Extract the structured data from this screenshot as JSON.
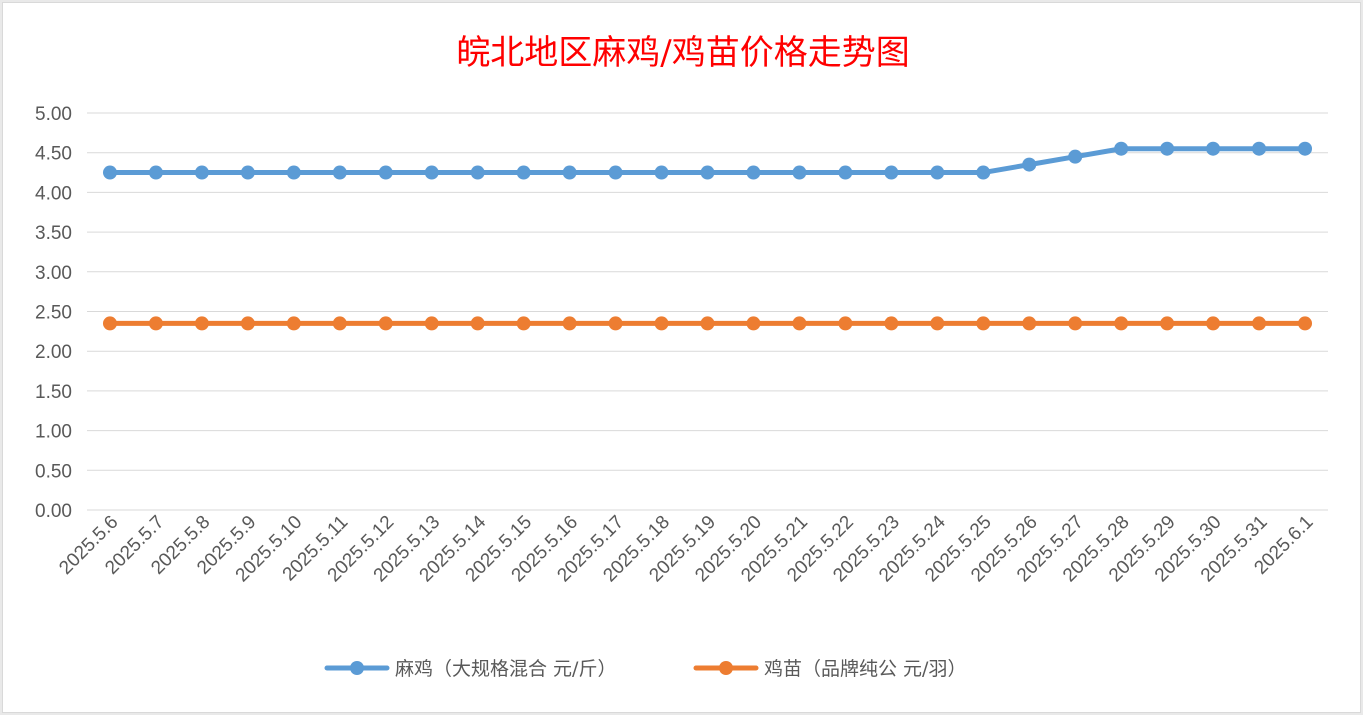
{
  "chart_data": {
    "type": "line",
    "title": "皖北地区麻鸡/鸡苗价格走势图",
    "title_color": "#ff0000",
    "categories": [
      "2025.5.6",
      "2025.5.7",
      "2025.5.8",
      "2025.5.9",
      "2025.5.10",
      "2025.5.11",
      "2025.5.12",
      "2025.5.13",
      "2025.5.14",
      "2025.5.15",
      "2025.5.16",
      "2025.5.17",
      "2025.5.18",
      "2025.5.19",
      "2025.5.20",
      "2025.5.21",
      "2025.5.22",
      "2025.5.23",
      "2025.5.24",
      "2025.5.25",
      "2025.5.26",
      "2025.5.27",
      "2025.5.28",
      "2025.5.29",
      "2025.5.30",
      "2025.5.31",
      "2025.6.1"
    ],
    "yticks": [
      "0.00",
      "0.50",
      "1.00",
      "1.50",
      "2.00",
      "2.50",
      "3.00",
      "3.50",
      "4.00",
      "4.50",
      "5.00"
    ],
    "ylim": [
      0,
      5
    ],
    "grid": true,
    "legend_position": "bottom",
    "series": [
      {
        "name": "麻鸡（大规格混合 元/斤）",
        "color": "#5b9bd5",
        "values": [
          4.25,
          4.25,
          4.25,
          4.25,
          4.25,
          4.25,
          4.25,
          4.25,
          4.25,
          4.25,
          4.25,
          4.25,
          4.25,
          4.25,
          4.25,
          4.25,
          4.25,
          4.25,
          4.25,
          4.25,
          4.35,
          4.45,
          4.55,
          4.55,
          4.55,
          4.55,
          4.55
        ]
      },
      {
        "name": "鸡苗（品牌纯公 元/羽）",
        "color": "#ed7d31",
        "values": [
          2.35,
          2.35,
          2.35,
          2.35,
          2.35,
          2.35,
          2.35,
          2.35,
          2.35,
          2.35,
          2.35,
          2.35,
          2.35,
          2.35,
          2.35,
          2.35,
          2.35,
          2.35,
          2.35,
          2.35,
          2.35,
          2.35,
          2.35,
          2.35,
          2.35,
          2.35,
          2.35
        ]
      }
    ]
  }
}
